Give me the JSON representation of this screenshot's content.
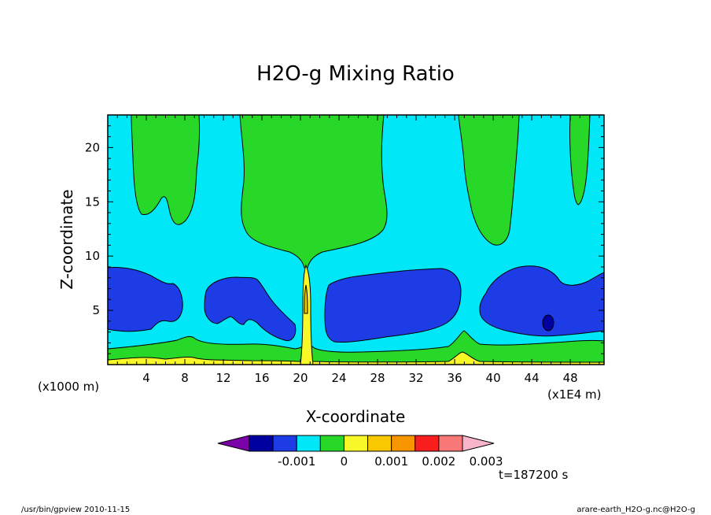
{
  "chart_data": {
    "type": "contour",
    "title": "H2O-g Mixing Ratio",
    "xlabel": "X-coordinate",
    "ylabel": "Z-coordinate",
    "x_unit_note": "(x1E4 m)",
    "y_unit_note": "(x1000 m)",
    "xlim": [
      0,
      51.5
    ],
    "ylim": [
      0,
      23
    ],
    "x_ticks": [
      4,
      8,
      12,
      16,
      20,
      24,
      28,
      32,
      36,
      40,
      44,
      48
    ],
    "y_ticks": [
      5,
      10,
      15,
      20
    ],
    "colorbar": {
      "levels": [
        -0.0025,
        -0.002,
        -0.0015,
        -0.001,
        -0.0005,
        0,
        0.0005,
        0.001,
        0.0015,
        0.002,
        0.0025,
        0.003
      ],
      "colors": [
        "#7a00a8",
        "#0000a0",
        "#1e3ce6",
        "#00e8f8",
        "#28d828",
        "#f8f828",
        "#f8c800",
        "#f89600",
        "#f81e1e",
        "#f87878",
        "#f8b4c8"
      ],
      "tick_labels": [
        "-0.001",
        "0",
        "0.001",
        "0.002",
        "0.003"
      ],
      "tick_values": [
        -0.001,
        0,
        0.001,
        0.002,
        0.003
      ]
    },
    "time_label": "t=187200 s"
  },
  "footer": {
    "left": "/usr/bin/gpview  2010-11-15",
    "right": "arare-earth_H2O-g.nc@H2O-g"
  },
  "colors": {
    "cyan": "#00e8f8",
    "green": "#28d828",
    "blue": "#1e3ce6",
    "dark_blue": "#0000a0",
    "yellow": "#f8f828",
    "orange": "#f8c800"
  }
}
